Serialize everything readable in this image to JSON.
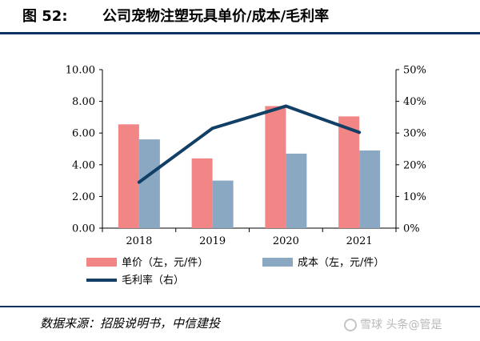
{
  "figure": {
    "number": "图 52:",
    "title": "公司宠物注塑玩具单价/成本/毛利率"
  },
  "source": "数据来源：招股说明书，中信建投",
  "watermark": "雪球 头条@管是",
  "colors": {
    "price_bar": "#f28585",
    "cost_bar": "#8aa8c2",
    "margin_line": "#123f66",
    "rule": "#0d3262"
  },
  "chart_data": {
    "type": "bar",
    "categories": [
      "2018",
      "2019",
      "2020",
      "2021"
    ],
    "series": [
      {
        "name": "单价（左，元/件）",
        "type": "bar",
        "axis": "left",
        "values": [
          6.55,
          4.4,
          7.7,
          7.05
        ]
      },
      {
        "name": "成本（左，元/件）",
        "type": "bar",
        "axis": "left",
        "values": [
          5.6,
          3.0,
          4.7,
          4.9
        ]
      },
      {
        "name": "毛利率（右）",
        "type": "line",
        "axis": "right",
        "values": [
          14.5,
          31.5,
          38.5,
          30.2
        ]
      }
    ],
    "y_left": {
      "ylim": [
        0,
        10
      ],
      "ticks": [
        "0.00",
        "2.00",
        "4.00",
        "6.00",
        "8.00",
        "10.00"
      ]
    },
    "y_right": {
      "ylim": [
        0,
        50
      ],
      "ticks": [
        "0%",
        "10%",
        "20%",
        "30%",
        "40%",
        "50%"
      ]
    },
    "grid": false,
    "legend": "bottom"
  }
}
